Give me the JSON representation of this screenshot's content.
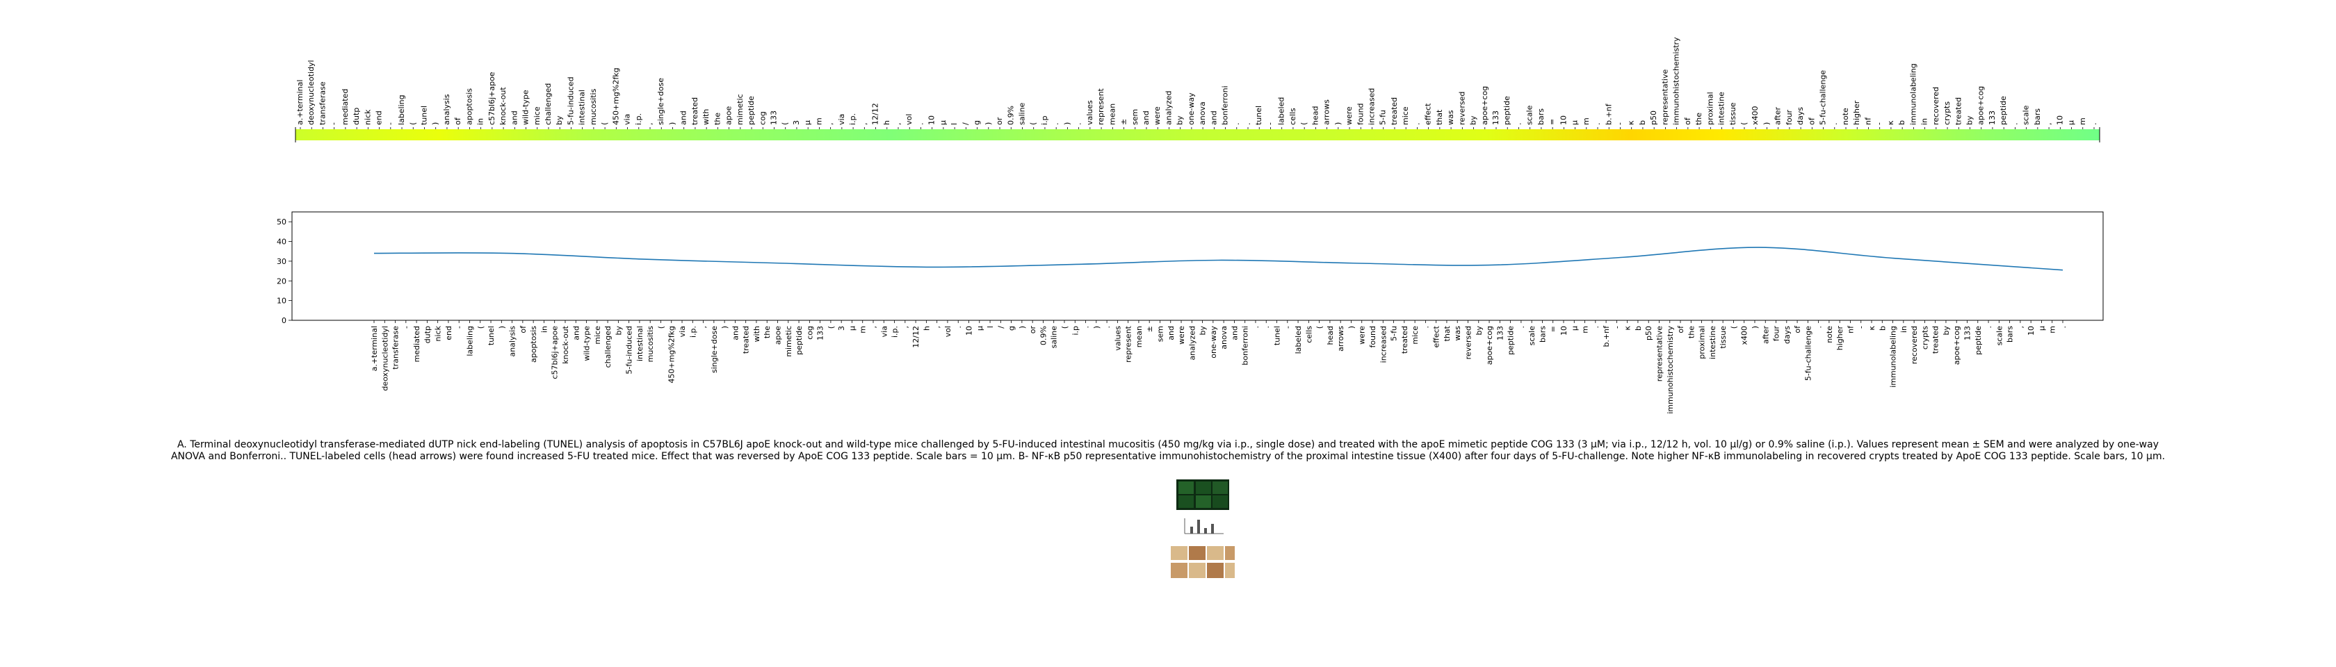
{
  "chart_data": [
    {
      "type": "heatmap",
      "tick_labels": [
        "a.+terminal",
        "deoxynucleotidyl",
        "transferase",
        "-",
        "mediated",
        "dutp",
        "nick",
        "end",
        "-",
        "labeling",
        "(",
        "tunel",
        ")",
        "analysis",
        "of",
        "apoptosis",
        "in",
        "c57bl6j+apoe",
        "knock-out",
        "and",
        "wild-type",
        "mice",
        "challenged",
        "by",
        "5-fu-induced",
        "intestinal",
        "mucositis",
        "(",
        "450+mg%2fkg",
        "via",
        "i.p.",
        ",",
        "single+dose",
        ")",
        "and",
        "treated",
        "with",
        "the",
        "apoe",
        "mimetic",
        "peptide",
        "cog",
        "133",
        "(",
        "3",
        "µ",
        "m",
        ",",
        "via",
        "i.p.",
        ",",
        "12/12",
        "h",
        ",",
        "vol",
        ".",
        "10",
        "µ",
        "l",
        "/",
        "g",
        ")",
        "or",
        "0.9%",
        "saline",
        "(",
        "i.p",
        ".",
        ")",
        ".",
        "values",
        "represent",
        "mean",
        "±",
        "sem",
        "and",
        "were",
        "analyzed",
        "by",
        "one-way",
        "anova",
        "and",
        "bonferroni",
        ".",
        ".",
        "tunel",
        "-",
        "labeled",
        "cells",
        "(",
        "head",
        "arrows",
        ")",
        "were",
        "found",
        "increased",
        "5-fu",
        "treated",
        "mice",
        ".",
        "effect",
        "that",
        "was",
        "reversed",
        "by",
        "apoe+cog",
        "133",
        "peptide",
        ".",
        "scale",
        "bars",
        "=",
        "10",
        "µ",
        "m",
        ".",
        "b.+nf",
        "-",
        "κ",
        "b",
        "p50",
        "representative",
        "immunohistochemistry",
        "of",
        "the",
        "proximal",
        "intestine",
        "tissue",
        "(",
        "x400",
        ")",
        "after",
        "four",
        "days",
        "of",
        "5-fu-challenge",
        ".",
        "note",
        "higher",
        "nf",
        "-",
        "κ",
        "b",
        "immunolabeling",
        "in",
        "recovered",
        "crypts",
        "treated",
        "by",
        "apoe+cog",
        "133",
        "peptide",
        ".",
        "scale",
        "bars",
        ",",
        "10",
        "µ",
        "m",
        "."
      ],
      "color_stops": [
        {
          "pos": 0.0,
          "color": "#cdff29"
        },
        {
          "pos": 0.08,
          "color": "#eaff0c"
        },
        {
          "pos": 0.16,
          "color": "#b4ff43"
        },
        {
          "pos": 0.24,
          "color": "#97ff60"
        },
        {
          "pos": 0.33,
          "color": "#80ff77"
        },
        {
          "pos": 0.42,
          "color": "#a7ff50"
        },
        {
          "pos": 0.5,
          "color": "#c4ff33"
        },
        {
          "pos": 0.58,
          "color": "#cdff29"
        },
        {
          "pos": 0.66,
          "color": "#e0ff16"
        },
        {
          "pos": 0.74,
          "color": "#ffd600"
        },
        {
          "pos": 0.79,
          "color": "#ffea00"
        },
        {
          "pos": 0.86,
          "color": "#cdff29"
        },
        {
          "pos": 0.94,
          "color": "#90ff66"
        },
        {
          "pos": 1.0,
          "color": "#70ff87"
        }
      ]
    },
    {
      "type": "line",
      "tick_labels": [
        "a.+terminal",
        "deoxynucleotidyl",
        "transferase",
        "-",
        "mediated",
        "dutp",
        "nick",
        "end",
        "-",
        "labeling",
        "(",
        "tunel",
        ")",
        "analysis",
        "of",
        "apoptosis",
        "in",
        "c57bl6j+apoe",
        "knock-out",
        "and",
        "wild-type",
        "mice",
        "challenged",
        "by",
        "5-fu-induced",
        "intestinal",
        "mucositis",
        "(",
        "450+mg%2fkg",
        "via",
        "i.p.",
        ",",
        "single+dose",
        ")",
        "and",
        "treated",
        "with",
        "the",
        "apoe",
        "mimetic",
        "peptide",
        "cog",
        "133",
        "(",
        "3",
        "µ",
        "m",
        ",",
        "via",
        "i.p.",
        ",",
        "12/12",
        "h",
        ",",
        "vol",
        ".",
        "10",
        "µ",
        "l",
        "/",
        "g",
        ")",
        "or",
        "0.9%",
        "saline",
        "(",
        "i.p",
        ".",
        ")",
        ".",
        "values",
        "represent",
        "mean",
        "±",
        "sem",
        "and",
        "were",
        "analyzed",
        "by",
        "one-way",
        "anova",
        "and",
        "bonferroni",
        ".",
        ".",
        "tunel",
        "-",
        "labeled",
        "cells",
        "(",
        "head",
        "arrows",
        ")",
        "were",
        "found",
        "increased",
        "5-fu",
        "treated",
        "mice",
        ".",
        "effect",
        "that",
        "was",
        "reversed",
        "by",
        "apoe+cog",
        "133",
        "peptide",
        ".",
        "scale",
        "bars",
        "=",
        "10",
        "µ",
        "m",
        ".",
        "b.+nf",
        "-",
        "κ",
        "b",
        "p50",
        "representative",
        "immunohistochemistry",
        "of",
        "the",
        "proximal",
        "intestine",
        "tissue",
        "(",
        "x400",
        ")",
        "after",
        "four",
        "days",
        "of",
        "5-fu-challenge",
        ".",
        "note",
        "higher",
        "nf",
        "-",
        "κ",
        "b",
        "immunolabeling",
        "in",
        "recovered",
        "crypts",
        "treated",
        "by",
        "apoe+cog",
        "133",
        "peptide",
        ".",
        "scale",
        "bars",
        ",",
        "10",
        "µ",
        "m",
        "."
      ],
      "x": [
        0.0,
        0.08,
        0.16,
        0.24,
        0.33,
        0.42,
        0.5,
        0.58,
        0.66,
        0.74,
        0.82,
        0.9,
        1.0
      ],
      "values": [
        34,
        34,
        31,
        29,
        27,
        28.5,
        30.5,
        29,
        28,
        32,
        37,
        31.5,
        25.5
      ],
      "ylim": [
        0,
        55
      ],
      "yticks": [
        0,
        10,
        20,
        30,
        40,
        50
      ],
      "grid": false,
      "color": "#1f77b4"
    }
  ],
  "caption": {
    "line1": "A. Terminal deoxynucleotidyl transferase-mediated dUTP nick end-labeling (TUNEL) analysis of apoptosis in C57BL6J apoE knock-out and wild-type mice challenged by 5-FU-induced intestinal mucositis (450 mg/kg via i.p., single dose) and treated with the apoE mimetic peptide COG 133 (3 µM; via i.p., 12/12 h, vol. 10 µl/g) or 0.9% saline (i.p.). Values represent mean ± SEM and were analyzed by one-way",
    "line2": "ANOVA and Bonferroni.. TUNEL-labeled cells (head arrows) were found increased 5-FU treated mice. Effect that was reversed by ApoE COG 133 peptide. Scale bars = 10 µm. B- NF-κB p50 representative immunohistochemistry of the proximal intestine tissue (X400) after four days of 5-FU-challenge. Note higher NF-κB immunolabeling in recovered crypts treated by ApoE COG 133 peptide. Scale bars, 10 µm."
  },
  "colors": {
    "line": "#1f77b4",
    "axis": "#000000",
    "thumb_green_dark": "#0d2a12",
    "thumb_green": "#2f7a33",
    "thumb_brown": "#b07a4a",
    "thumb_tan": "#d9b98a"
  }
}
